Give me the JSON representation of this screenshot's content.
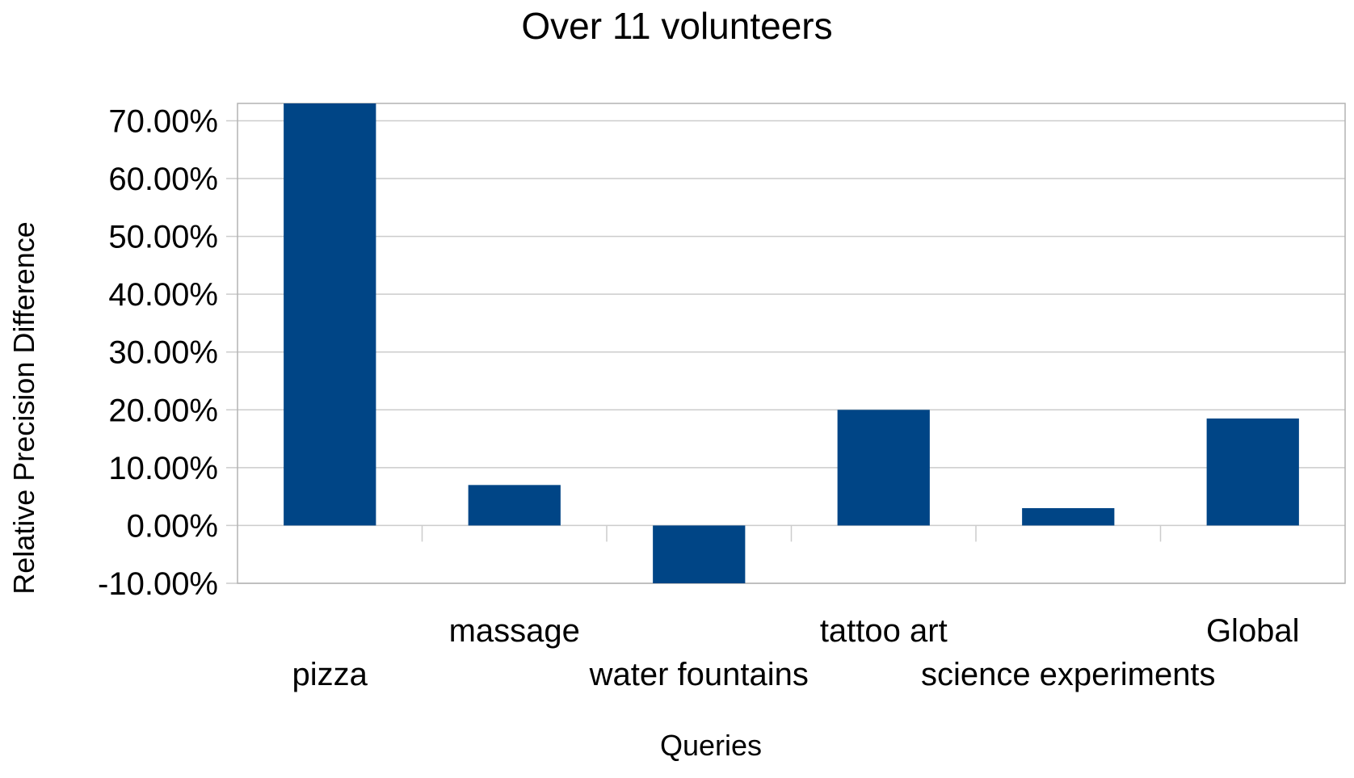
{
  "chart_data": {
    "type": "bar",
    "title": "Over 11 volunteers",
    "xlabel": "Queries",
    "ylabel": "Relative Precision Difference",
    "categories": [
      "pizza",
      "massage",
      "water fountains",
      "tattoo art",
      "science experiments",
      "Global"
    ],
    "series": [
      {
        "values": [
          73,
          7,
          -10,
          20,
          3,
          18.5
        ]
      }
    ],
    "ylim": [
      -10,
      73
    ],
    "yticks": [
      -10,
      0,
      10,
      20,
      30,
      40,
      50,
      60,
      70
    ],
    "ytick_labels": [
      "-10.00%",
      "0.00%",
      "10.00%",
      "20.00%",
      "30.00%",
      "40.00%",
      "50.00%",
      "60.00%",
      "70.00%"
    ],
    "grid": true,
    "legend": "none",
    "colors": {
      "bar": "#004586",
      "grid": "#cccccc"
    }
  }
}
